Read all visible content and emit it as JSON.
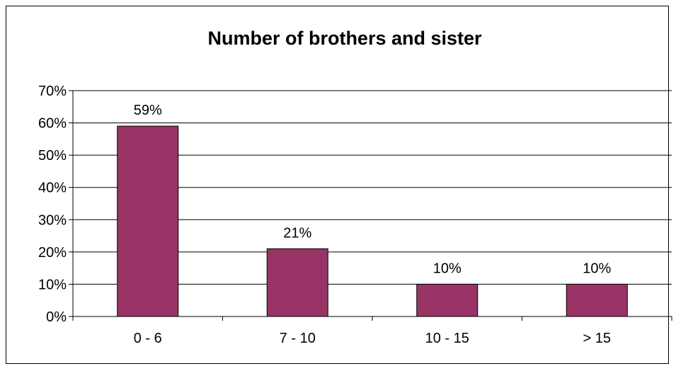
{
  "chart_data": {
    "type": "bar",
    "title": "Number of brothers and sister",
    "xlabel": "",
    "ylabel": "",
    "categories": [
      "0 - 6",
      "7 - 10",
      "10 - 15",
      "> 15"
    ],
    "values": [
      59,
      21,
      10,
      10
    ],
    "data_labels": [
      "59%",
      "21%",
      "10%",
      "10%"
    ],
    "ylim": [
      0,
      70
    ],
    "yticks": [
      0,
      10,
      20,
      30,
      40,
      50,
      60,
      70
    ],
    "ytick_labels": [
      "0%",
      "10%",
      "20%",
      "30%",
      "40%",
      "50%",
      "60%",
      "70%"
    ],
    "grid": true,
    "legend": "none",
    "bar_color": "#993366"
  }
}
